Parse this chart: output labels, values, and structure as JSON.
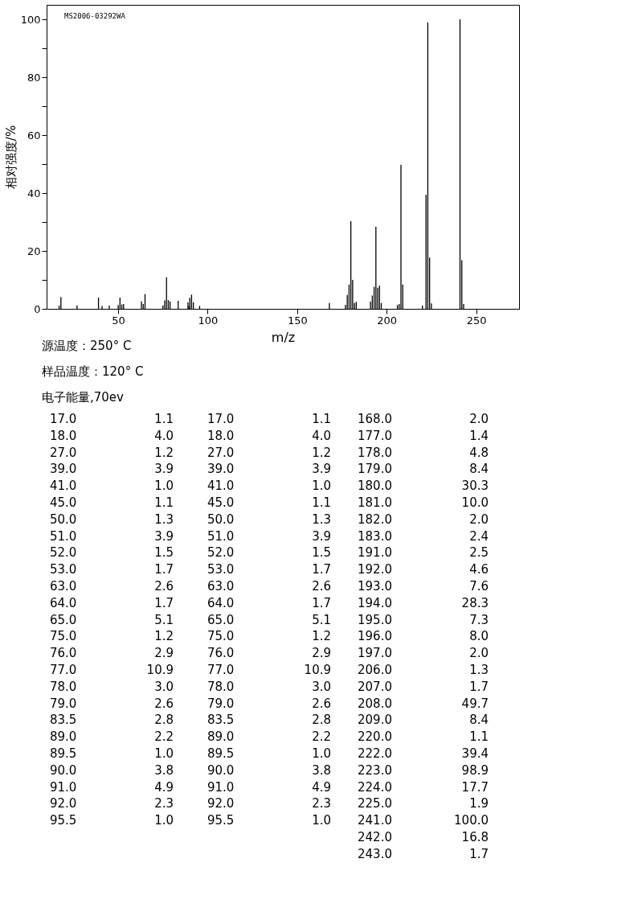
{
  "chart_data": [
    {
      "type": "bar",
      "xlabel": "m/z",
      "ylabel": "相对强度/%",
      "x": [
        17.0,
        18.0,
        27.0,
        39.0,
        41.0,
        45.0,
        50.0,
        51.0,
        52.0,
        53.0,
        63.0,
        64.0,
        65.0,
        75.0,
        76.0,
        77.0,
        78.0,
        79.0,
        83.5,
        89.0,
        89.5,
        90.0,
        91.0,
        92.0,
        95.5,
        168.0,
        177.0,
        178.0,
        179.0,
        180.0,
        181.0,
        182.0,
        183.0,
        191.0,
        192.0,
        193.0,
        194.0,
        195.0,
        196.0,
        197.0,
        206.0,
        207.0,
        208.0,
        209.0,
        220.0,
        222.0,
        223.0,
        224.0,
        225.0,
        241.0,
        242.0,
        243.0
      ],
      "values": [
        1.1,
        4.0,
        1.2,
        3.9,
        1.0,
        1.1,
        1.3,
        3.9,
        1.5,
        1.7,
        2.6,
        1.7,
        5.1,
        1.2,
        2.9,
        10.9,
        3.0,
        2.6,
        2.8,
        2.2,
        1.0,
        3.8,
        4.9,
        2.3,
        1.0,
        2.0,
        1.4,
        4.8,
        8.4,
        30.3,
        10.0,
        2.0,
        2.4,
        2.5,
        4.6,
        7.6,
        28.3,
        7.3,
        8.0,
        2.0,
        1.3,
        1.7,
        49.7,
        8.4,
        1.1,
        39.4,
        98.9,
        17.7,
        1.9,
        100.0,
        16.8,
        1.7
      ],
      "color": "#000000",
      "xlim": [
        10,
        274
      ],
      "xticks": [
        50,
        100,
        150,
        200,
        250
      ],
      "ylim": [
        0,
        105
      ],
      "yticks": [
        0,
        {
          "value": 10,
          "label": null
        },
        20,
        {
          "value": 30,
          "label": null
        },
        40,
        {
          "value": 50,
          "label": null
        },
        60,
        {
          "value": 70,
          "label": null
        },
        80,
        {
          "value": 90,
          "label": null
        },
        100
      ],
      "grid": false,
      "annotations": [
        "MS2006-03292WA",
        "源温度：250° C",
        "样品温度：120° C",
        "电子能量,70ev"
      ]
    },
    {
      "type": "other",
      "annotations": [
        "17.0",
        "1.1",
        "17.0",
        "1.1",
        "168.0",
        "2.0",
        "18.0",
        "4.0",
        "18.0",
        "4.0",
        "177.0",
        "1.4",
        "27.0",
        "1.2",
        "27.0",
        "1.2",
        "178.0",
        "4.8",
        "39.0",
        "3.9",
        "39.0",
        "3.9",
        "179.0",
        "8.4",
        "41.0",
        "1.0",
        "41.0",
        "1.0",
        "180.0",
        "30.3",
        "45.0",
        "1.1",
        "45.0",
        "1.1",
        "181.0",
        "10.0",
        "50.0",
        "1.3",
        "50.0",
        "1.3",
        "182.0",
        "2.0",
        "51.0",
        "3.9",
        "51.0",
        "3.9",
        "183.0",
        "2.4",
        "52.0",
        "1.5",
        "52.0",
        "1.5",
        "191.0",
        "2.5",
        "53.0",
        "1.7",
        "53.0",
        "1.7",
        "192.0",
        "4.6",
        "63.0",
        "2.6",
        "63.0",
        "2.6",
        "193.0",
        "7.6",
        "64.0",
        "1.7",
        "64.0",
        "1.7",
        "194.0",
        "28.3",
        "65.0",
        "5.1",
        "65.0",
        "5.1",
        "195.0",
        "7.3",
        "75.0",
        "1.2",
        "75.0",
        "1.2",
        "196.0",
        "8.0",
        "76.0",
        "2.9",
        "76.0",
        "2.9",
        "197.0",
        "2.0",
        "77.0",
        "10.9",
        "77.0",
        "10.9",
        "206.0",
        "1.3",
        "78.0",
        "3.0",
        "78.0",
        "3.0",
        "207.0",
        "1.7",
        "79.0",
        "2.6",
        "79.0",
        "2.6",
        "208.0",
        "49.7",
        "83.5",
        "2.8",
        "83.5",
        "2.8",
        "209.0",
        "8.4",
        "89.0",
        "2.2",
        "89.0",
        "2.2",
        "220.0",
        "1.1",
        "89.5",
        "1.0",
        "89.5",
        "1.0",
        "222.0",
        "39.4",
        "90.0",
        "3.8",
        "90.0",
        "3.8",
        "223.0",
        "98.9",
        "91.0",
        "4.9",
        "91.0",
        "4.9",
        "224.0",
        "17.7",
        "92.0",
        "2.3",
        "92.0",
        "2.3",
        "225.0",
        "1.9",
        "95.5",
        "1.0",
        "95.5",
        "1.0",
        "241.0",
        "100.0",
        "242.0",
        "16.8",
        "243.0",
        "1.7"
      ]
    }
  ]
}
